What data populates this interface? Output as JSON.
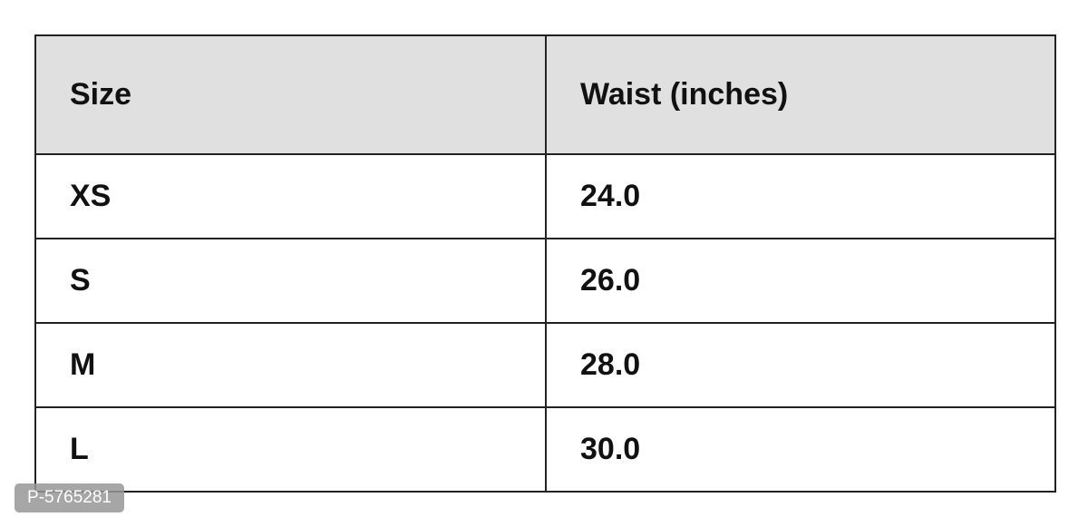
{
  "table": {
    "header": [
      "Size",
      "Waist (inches)"
    ],
    "rows": [
      [
        "XS",
        "24.0"
      ],
      [
        "S",
        "26.0"
      ],
      [
        "M",
        "28.0"
      ],
      [
        "L",
        "30.0"
      ]
    ]
  },
  "watermark": "P-5765281"
}
